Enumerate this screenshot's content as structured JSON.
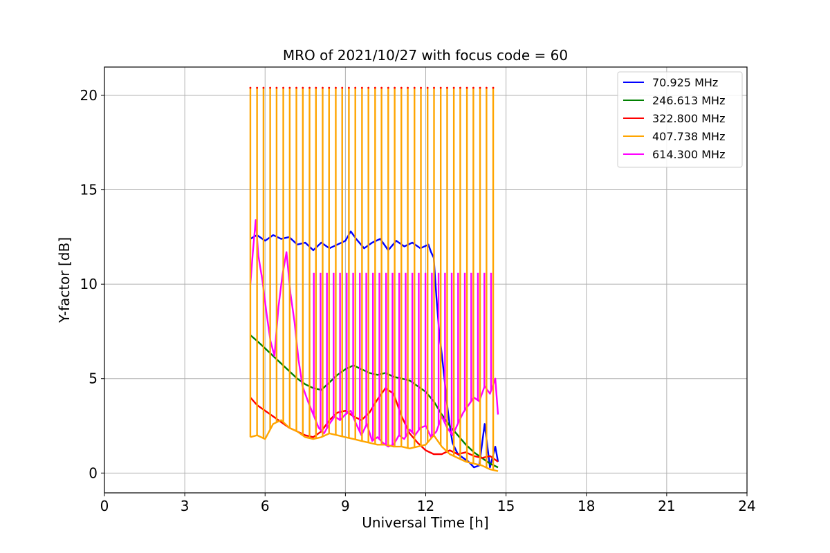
{
  "chart_data": {
    "type": "line",
    "title": "MRO of 2021/10/27 with focus code = 60",
    "xlabel": "Universal Time [h]",
    "ylabel": "Y-factor [dB]",
    "xlim": [
      0,
      24
    ],
    "ylim": [
      -1.05,
      21.5
    ],
    "x_ticks": [
      0,
      3,
      6,
      9,
      12,
      15,
      18,
      21,
      24
    ],
    "y_ticks": [
      0,
      5,
      10,
      15,
      20
    ],
    "x_tick_labels": [
      "0",
      "3",
      "6",
      "9",
      "12",
      "15",
      "18",
      "21",
      "24"
    ],
    "y_tick_labels": [
      "0",
      "5",
      "10",
      "15",
      "20"
    ],
    "grid": true,
    "legend_position": "top-right",
    "series": [
      {
        "name": " 70.925 MHz",
        "color": "#0000ff",
        "x": [
          5.45,
          5.7,
          6.0,
          6.3,
          6.6,
          6.9,
          7.2,
          7.5,
          7.8,
          8.1,
          8.4,
          8.7,
          9.0,
          9.2,
          9.4,
          9.7,
          10.0,
          10.3,
          10.6,
          10.9,
          11.2,
          11.5,
          11.8,
          12.1,
          12.2,
          12.3,
          12.4,
          12.5,
          12.6,
          12.7,
          12.8,
          12.9,
          13.0,
          13.2,
          13.4,
          13.6,
          13.8,
          14.0,
          14.2,
          14.4,
          14.6,
          14.7
        ],
        "y": [
          12.4,
          12.6,
          12.3,
          12.6,
          12.4,
          12.5,
          12.1,
          12.2,
          11.8,
          12.2,
          11.9,
          12.1,
          12.3,
          12.8,
          12.4,
          11.9,
          12.2,
          12.4,
          11.8,
          12.3,
          12.0,
          12.2,
          11.9,
          12.1,
          11.7,
          11.4,
          9.3,
          7.5,
          6.3,
          5.0,
          3.6,
          2.5,
          1.6,
          1.0,
          0.8,
          0.6,
          0.3,
          0.4,
          2.6,
          0.3,
          1.4,
          0.6
        ]
      },
      {
        "name": " 246.613 MHz",
        "color": "#008000",
        "x": [
          5.45,
          5.7,
          6.0,
          6.3,
          6.6,
          6.9,
          7.2,
          7.5,
          7.8,
          8.1,
          8.4,
          8.7,
          9.0,
          9.3,
          9.6,
          9.9,
          10.2,
          10.5,
          10.8,
          11.1,
          11.4,
          11.7,
          12.0,
          12.3,
          12.6,
          12.9,
          13.2,
          13.5,
          13.8,
          14.1,
          14.4,
          14.7
        ],
        "y": [
          7.3,
          7.0,
          6.6,
          6.2,
          5.8,
          5.4,
          5.0,
          4.7,
          4.5,
          4.4,
          4.8,
          5.2,
          5.5,
          5.7,
          5.5,
          5.3,
          5.2,
          5.3,
          5.1,
          5.0,
          4.9,
          4.6,
          4.3,
          3.8,
          3.1,
          2.5,
          2.0,
          1.5,
          1.1,
          0.8,
          0.5,
          0.3
        ]
      },
      {
        "name": " 322.800 MHz",
        "color": "#ff0000",
        "x": [
          5.45,
          5.7,
          6.0,
          6.3,
          6.6,
          6.9,
          7.2,
          7.5,
          7.8,
          8.1,
          8.4,
          8.7,
          9.0,
          9.3,
          9.6,
          9.9,
          10.2,
          10.5,
          10.8,
          11.1,
          11.4,
          11.7,
          12.0,
          12.3,
          12.6,
          12.9,
          13.2,
          13.5,
          13.8,
          14.1,
          14.4,
          14.7
        ],
        "y": [
          4.0,
          3.6,
          3.3,
          3.0,
          2.7,
          2.4,
          2.2,
          2.0,
          1.9,
          2.2,
          2.8,
          3.2,
          3.3,
          3.0,
          2.8,
          3.2,
          3.9,
          4.5,
          4.2,
          3.0,
          2.1,
          1.6,
          1.2,
          1.0,
          1.0,
          1.2,
          1.0,
          1.1,
          0.9,
          0.8,
          0.9,
          0.6
        ]
      },
      {
        "name": " 407.738 MHz",
        "color": "#ffa500",
        "x": [
          5.45,
          5.7,
          6.0,
          6.3,
          6.6,
          6.9,
          7.2,
          7.5,
          7.8,
          8.1,
          8.4,
          8.7,
          9.0,
          9.3,
          9.6,
          9.9,
          10.2,
          10.5,
          10.8,
          11.1,
          11.4,
          11.7,
          12.0,
          12.3,
          12.6,
          12.9,
          13.2,
          13.5,
          13.8,
          14.1,
          14.4,
          14.7
        ],
        "y": [
          1.9,
          2.0,
          1.8,
          2.6,
          2.8,
          2.4,
          2.2,
          1.9,
          1.8,
          1.9,
          2.1,
          2.0,
          1.9,
          1.8,
          1.7,
          1.6,
          1.5,
          1.5,
          1.4,
          1.4,
          1.3,
          1.4,
          1.5,
          2.0,
          1.4,
          1.0,
          0.8,
          0.6,
          0.5,
          0.4,
          0.2,
          0.1
        ],
        "spikes": {
          "top": 20.4,
          "x": [
            5.45,
            5.7,
            5.94,
            6.19,
            6.43,
            6.68,
            6.92,
            7.17,
            7.41,
            7.66,
            7.9,
            8.15,
            8.39,
            8.64,
            8.88,
            9.13,
            9.37,
            9.62,
            9.86,
            10.11,
            10.35,
            10.6,
            10.84,
            11.09,
            11.33,
            11.58,
            11.82,
            12.07,
            12.31,
            12.56,
            12.8,
            13.05,
            13.29,
            13.54,
            13.78,
            14.03,
            14.27,
            14.52
          ]
        }
      },
      {
        "name": " 614.300 MHz",
        "color": "#ff00ff",
        "x": [
          5.45,
          5.55,
          5.65,
          5.75,
          5.9,
          6.05,
          6.2,
          6.35,
          6.5,
          6.65,
          6.8,
          6.95,
          7.1,
          7.25,
          7.4,
          7.6,
          7.8,
          8.0,
          8.2,
          8.4,
          8.6,
          8.8,
          9.0,
          9.2,
          9.4,
          9.6,
          9.8,
          10.0,
          10.2,
          10.4,
          10.6,
          10.8,
          11.0,
          11.2,
          11.4,
          11.6,
          11.8,
          12.0,
          12.2,
          12.4,
          12.6,
          12.8,
          13.0,
          13.2,
          13.4,
          13.6,
          13.8,
          14.0,
          14.2,
          14.4,
          14.6,
          14.7
        ],
        "y": [
          10.0,
          11.8,
          13.4,
          11.5,
          10.2,
          8.5,
          7.0,
          6.2,
          8.8,
          10.5,
          11.7,
          9.5,
          8.0,
          6.0,
          4.6,
          3.8,
          3.1,
          2.4,
          2.1,
          2.6,
          3.0,
          2.8,
          3.1,
          3.3,
          2.6,
          2.0,
          2.6,
          1.7,
          1.9,
          1.6,
          1.4,
          1.5,
          2.0,
          1.8,
          2.3,
          2.0,
          2.4,
          2.5,
          1.9,
          2.2,
          3.0,
          2.4,
          2.0,
          2.6,
          3.2,
          3.6,
          4.0,
          3.8,
          4.6,
          4.2,
          5.0,
          3.1
        ],
        "spikes": {
          "top": 10.6,
          "x": [
            7.82,
            8.07,
            8.31,
            8.56,
            8.8,
            9.05,
            9.29,
            9.54,
            9.78,
            10.03,
            10.27,
            10.52,
            10.76,
            11.01,
            11.25,
            11.5,
            11.74,
            11.99,
            12.23,
            12.48,
            12.72,
            12.97,
            13.21,
            13.46,
            13.7,
            13.95,
            14.19,
            14.44
          ]
        }
      }
    ]
  }
}
